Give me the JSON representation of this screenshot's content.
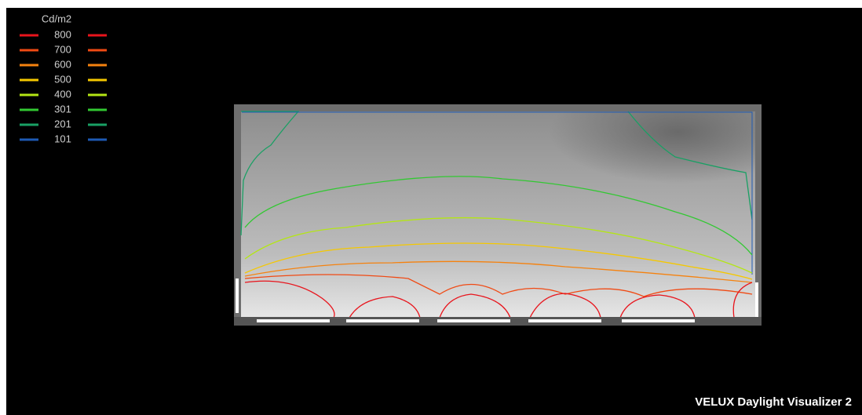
{
  "legend": {
    "unit": "Cd/m2",
    "items": [
      {
        "value": 800,
        "color": "#e8141c"
      },
      {
        "value": 700,
        "color": "#f04a14"
      },
      {
        "value": 600,
        "color": "#f5820f"
      },
      {
        "value": 500,
        "color": "#f5c800"
      },
      {
        "value": 400,
        "color": "#b4e614"
      },
      {
        "value": 301,
        "color": "#32c832"
      },
      {
        "value": 201,
        "color": "#19a064"
      },
      {
        "value": 101,
        "color": "#1e5ab4"
      }
    ]
  },
  "watermark": "VELUX Daylight Visualizer 2"
}
